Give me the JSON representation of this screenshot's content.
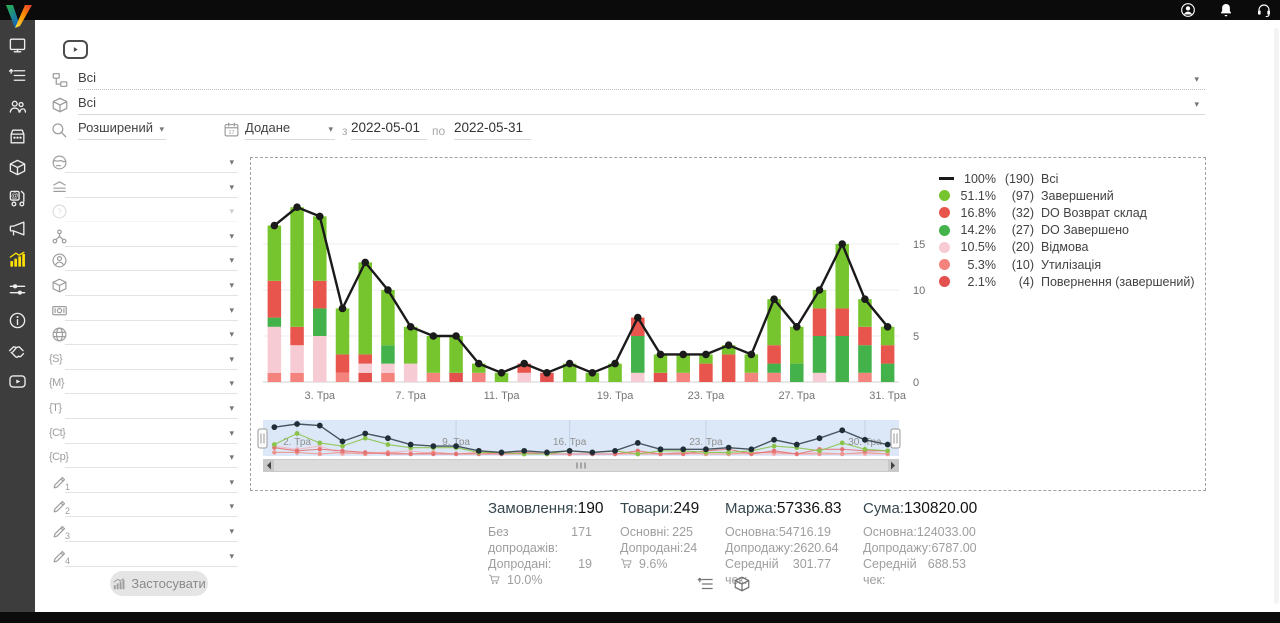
{
  "ui": {
    "dropdown_arrow": "▾",
    "sidebar_active_color": "#ffe000",
    "nav_band_color": "#dce8f7"
  },
  "header": {
    "icons": [
      {
        "icon": "user-circle",
        "name": "account"
      },
      {
        "icon": "bell",
        "name": "notifications"
      },
      {
        "icon": "headset",
        "name": "support"
      }
    ]
  },
  "sidebar": {
    "items": [
      {
        "icon": "monitor",
        "name": "dashboard"
      },
      {
        "icon": "tasklist",
        "name": "orders"
      },
      {
        "icon": "users",
        "name": "clients"
      },
      {
        "icon": "store",
        "name": "store"
      },
      {
        "icon": "package",
        "name": "products"
      },
      {
        "icon": "dolly",
        "name": "shipping"
      },
      {
        "icon": "megaphone",
        "name": "marketing"
      },
      {
        "icon": "barchart",
        "name": "statistics",
        "active": true
      },
      {
        "icon": "sliders",
        "name": "settings"
      },
      {
        "icon": "info",
        "name": "info"
      },
      {
        "icon": "handshake",
        "name": "partners"
      },
      {
        "icon": "video",
        "name": "video-lessons"
      }
    ]
  },
  "filters": {
    "status_select": {
      "value": "Всі"
    },
    "product_select": {
      "value": "Всі"
    },
    "mode_select": {
      "value": "Розширений"
    },
    "date_field_select": {
      "value": "Додане"
    },
    "date_from_label": "з",
    "date_from": "2022-05-01",
    "date_to_label": "по",
    "date_to": "2022-05-31",
    "apply_button": "Застосувати",
    "side_rows": [
      {
        "icon": "globe"
      },
      {
        "icon": "layers"
      },
      {
        "icon": "help",
        "disabled": true
      },
      {
        "icon": "network"
      },
      {
        "icon": "person"
      },
      {
        "icon": "package"
      },
      {
        "icon": "money"
      },
      {
        "icon": "web"
      },
      {
        "icon": "text",
        "text": "{S}"
      },
      {
        "icon": "text",
        "text": "{M}"
      },
      {
        "icon": "text",
        "text": "{T}"
      },
      {
        "icon": "text",
        "text": "{Ct}"
      },
      {
        "icon": "text",
        "text": "{Cp}"
      },
      {
        "icon": "pencil",
        "sub": "1"
      },
      {
        "icon": "pencil",
        "sub": "2"
      },
      {
        "icon": "pencil",
        "sub": "3"
      },
      {
        "icon": "pencil",
        "sub": "4"
      }
    ]
  },
  "legend": [
    {
      "marker": "line",
      "color": "#1a1a1a",
      "percent": "100%",
      "count": "(190)",
      "label": "Всі"
    },
    {
      "marker": "dot",
      "color": "#77c52e",
      "percent": "51.1%",
      "count": "(97)",
      "label": "Завершений"
    },
    {
      "marker": "dot",
      "color": "#e8554d",
      "percent": "16.8%",
      "count": "(32)",
      "label": "DO Возврат склад"
    },
    {
      "marker": "dot",
      "color": "#44b24a",
      "percent": "14.2%",
      "count": "(27)",
      "label": "DO Завершено"
    },
    {
      "marker": "dot",
      "color": "#f7cbd3",
      "percent": "10.5%",
      "count": "(20)",
      "label": "Відмова"
    },
    {
      "marker": "dot",
      "color": "#f4837d",
      "percent": "5.3%",
      "count": "(10)",
      "label": "Утилізація"
    },
    {
      "marker": "dot",
      "color": "#e4504e",
      "percent": "2.1%",
      "count": "(4)",
      "label": "Повернення (завершений)"
    }
  ],
  "chart_data": {
    "type": "stacked-bar-with-line",
    "title": "",
    "xlabel": "",
    "ylabel": "",
    "y_ticks": [
      0,
      5,
      10,
      15
    ],
    "y_max": 19.5,
    "grid": true,
    "legend_position": "right",
    "days": [
      "1",
      "2",
      "3",
      "4",
      "5",
      "6",
      "7",
      "8",
      "9",
      "10",
      "11",
      "12",
      "14",
      "16",
      "18",
      "19",
      "20",
      "21",
      "22",
      "23",
      "24",
      "25",
      "26",
      "27",
      "28",
      "29",
      "30",
      "31"
    ],
    "x_tick_labels": [
      {
        "index": 2,
        "label": "3. Тра"
      },
      {
        "index": 6,
        "label": "7. Тра"
      },
      {
        "index": 10,
        "label": "11. Тра"
      },
      {
        "index": 15,
        "label": "19. Тра"
      },
      {
        "index": 19,
        "label": "23. Тра"
      },
      {
        "index": 23,
        "label": "27. Тра"
      },
      {
        "index": 27,
        "label": "31. Тра"
      }
    ],
    "line_series": {
      "name": "Всі",
      "color": "#1a1a1a",
      "values": [
        17,
        19,
        18,
        8,
        13,
        10,
        6,
        5,
        5,
        2,
        1,
        2,
        1,
        2,
        1,
        2,
        7,
        3,
        3,
        3,
        4,
        3,
        9,
        6,
        10,
        15,
        9,
        6
      ]
    },
    "bar_series": [
      {
        "name": "Повернення (завершений)",
        "color": "#e4504e",
        "values": [
          0,
          0,
          0,
          0,
          1,
          0,
          0,
          0,
          1,
          0,
          0,
          0,
          1,
          0,
          0,
          0,
          0,
          1,
          0,
          0,
          0,
          0,
          0,
          0,
          0,
          0,
          0,
          0
        ]
      },
      {
        "name": "Утилізація",
        "color": "#f4837d",
        "values": [
          1,
          1,
          0,
          1,
          0,
          1,
          0,
          1,
          0,
          1,
          0,
          0,
          0,
          0,
          0,
          0,
          0,
          0,
          1,
          0,
          0,
          1,
          1,
          0,
          0,
          0,
          1,
          0
        ]
      },
      {
        "name": "Відмова",
        "color": "#f7cbd3",
        "values": [
          5,
          3,
          5,
          0,
          1,
          1,
          2,
          0,
          0,
          0,
          0,
          1,
          0,
          0,
          0,
          0,
          1,
          0,
          0,
          0,
          0,
          0,
          0,
          0,
          1,
          0,
          0,
          0
        ]
      },
      {
        "name": "DO Завершено",
        "color": "#44b24a",
        "values": [
          1,
          0,
          3,
          0,
          0,
          2,
          0,
          0,
          0,
          0,
          0,
          0,
          0,
          0,
          0,
          0,
          4,
          0,
          0,
          0,
          0,
          0,
          1,
          2,
          4,
          5,
          3,
          2
        ]
      },
      {
        "name": "DO Возврат склад",
        "color": "#e8554d",
        "values": [
          4,
          2,
          3,
          2,
          1,
          0,
          0,
          0,
          0,
          0,
          0,
          1,
          0,
          0,
          0,
          0,
          2,
          0,
          0,
          2,
          3,
          0,
          2,
          0,
          3,
          3,
          2,
          2
        ]
      },
      {
        "name": "Завершений",
        "color": "#77c52e",
        "values": [
          6,
          13,
          7,
          5,
          10,
          6,
          4,
          4,
          4,
          1,
          1,
          0,
          0,
          2,
          1,
          2,
          0,
          2,
          2,
          1,
          1,
          2,
          5,
          4,
          2,
          7,
          3,
          2
        ]
      }
    ],
    "navigator": {
      "labels": [
        {
          "index": 1,
          "label": "2. Тра"
        },
        {
          "index": 8,
          "label": "9. Тра"
        },
        {
          "index": 13,
          "label": "16. Тра"
        },
        {
          "index": 19,
          "label": "23. Тра"
        },
        {
          "index": 26,
          "label": "30. Тра"
        }
      ]
    }
  },
  "stats": {
    "columns": [
      {
        "title": "Замовлення:",
        "value": "190",
        "rows": [
          {
            "label": "Без допродажів:",
            "value": "171"
          },
          {
            "label": "Допродані:",
            "value": "19"
          },
          {
            "icon": "cart",
            "label": "",
            "value": "10.0%"
          }
        ]
      },
      {
        "title": "Товари:",
        "value": "249",
        "rows": [
          {
            "label": "Основні:",
            "value": "225"
          },
          {
            "label": "Допродані:",
            "value": "24"
          },
          {
            "icon": "cart",
            "label": "",
            "value": "9.6%"
          }
        ]
      },
      {
        "title": "Маржа:",
        "value": "57336.83",
        "rows": [
          {
            "label": "Основна:",
            "value": "54716.19"
          },
          {
            "label": "Допродажу:",
            "value": "2620.64"
          },
          {
            "label": "Середній чек:",
            "value": "301.77"
          }
        ]
      },
      {
        "title": "Сума:",
        "value": "130820.00",
        "rows": [
          {
            "label": "Основна:",
            "value": "124033.00"
          },
          {
            "label": "Допродажу:",
            "value": "6787.00"
          },
          {
            "label": "Середній чек:",
            "value": "688.53"
          }
        ]
      }
    ]
  },
  "view_toggles": [
    {
      "icon": "listview",
      "name": "orders-view-toggle"
    },
    {
      "icon": "cube",
      "name": "products-view-toggle"
    }
  ]
}
